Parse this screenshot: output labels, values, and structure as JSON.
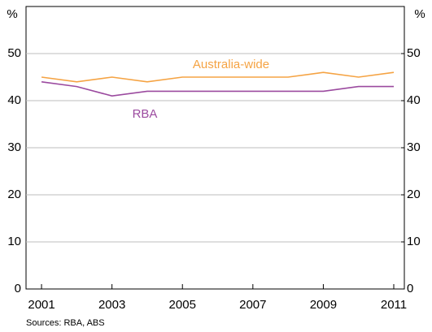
{
  "chart_data": {
    "type": "line",
    "y_label": "%",
    "y2_label": "%",
    "source": "Sources: RBA, ABS",
    "x": [
      2001,
      2002,
      2003,
      2004,
      2005,
      2006,
      2007,
      2008,
      2009,
      2010,
      2011
    ],
    "xlim": [
      2000.56,
      2011.3
    ],
    "xticks": [
      2001,
      2003,
      2005,
      2007,
      2009,
      2011
    ],
    "ylim": [
      0,
      60
    ],
    "yticks": [
      0,
      10,
      20,
      30,
      40,
      50
    ],
    "y2lim": [
      0,
      60
    ],
    "y2ticks": [
      0,
      10,
      20,
      30,
      40,
      50
    ],
    "grid": true,
    "series": [
      {
        "name": "Australia-wide",
        "color": "#f5a343",
        "values": [
          45,
          44,
          45,
          44,
          45,
          45,
          45,
          45,
          46,
          45,
          46
        ]
      },
      {
        "name": "RBA",
        "color": "#9b4a9f",
        "values": [
          44,
          43,
          41,
          42,
          42,
          42,
          42,
          42,
          42,
          43,
          43
        ]
      }
    ]
  }
}
